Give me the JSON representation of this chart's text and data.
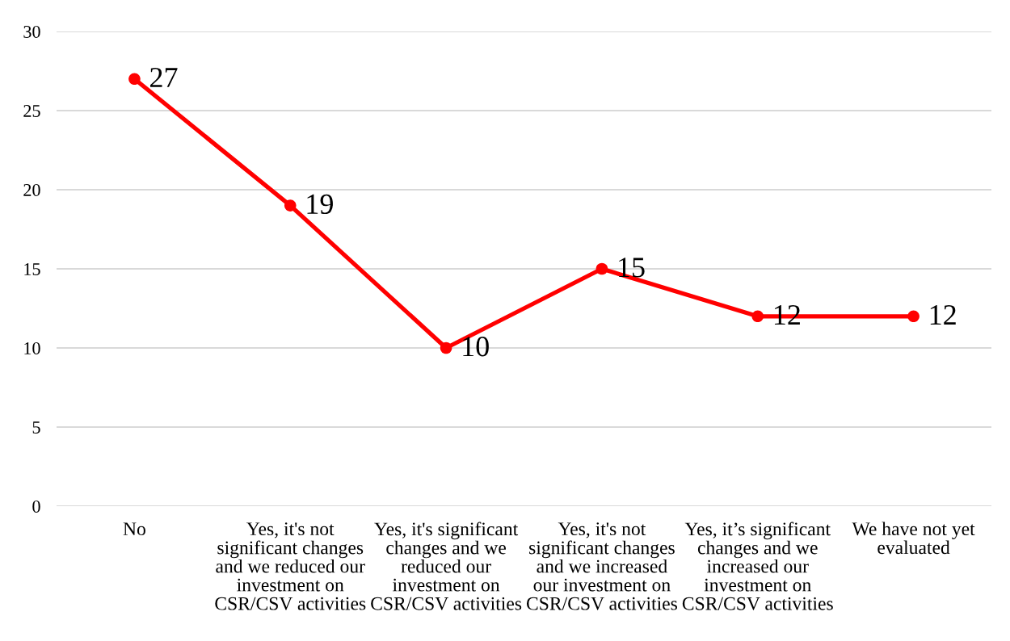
{
  "chart_data": {
    "type": "line",
    "categories": [
      "No",
      "Yes, it's not significant changes and we reduced our investment on CSR/CSV activities",
      "Yes, it's significant changes and we reduced our investment on CSR/CSV activities",
      "Yes, it's not significant changes and we increased our investment on CSR/CSV activities",
      "Yes, it’s significant changes and we increased our investment on CSR/CSV activities",
      "We have not yet evaluated"
    ],
    "series": [
      {
        "color": "#ff0000",
        "values": [
          27,
          19,
          10,
          15,
          12,
          12
        ]
      }
    ],
    "ylim": [
      0,
      30
    ],
    "yticks": [
      0,
      5,
      10,
      15,
      20,
      25,
      30
    ],
    "grid": "y",
    "data_labels": true,
    "marker": "circle",
    "line_style": "solid"
  }
}
